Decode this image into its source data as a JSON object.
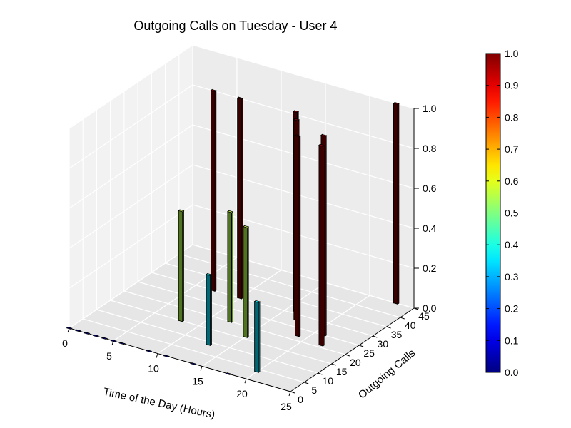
{
  "chart_data": {
    "type": "bar3d",
    "title": "Outgoing Calls on Tuesday - User 4",
    "xlabel": "Time of the Day (Hours)",
    "ylabel": "Outgoing Calls",
    "zlabel": "",
    "xlim": [
      0,
      25
    ],
    "ylim": [
      0,
      45
    ],
    "zlim": [
      0,
      1.0
    ],
    "xticks": [
      "0",
      "5",
      "10",
      "15",
      "20",
      "25"
    ],
    "yticks": [
      "0",
      "5",
      "10",
      "15",
      "20",
      "25",
      "30",
      "35",
      "40",
      "45"
    ],
    "zticks": [
      "0.0",
      "0.2",
      "0.4",
      "0.6",
      "0.8",
      "1.0"
    ],
    "colormap": "jet",
    "colorbar": {
      "min": 0.0,
      "max": 1.0,
      "ticks": [
        "0.0",
        "0.1",
        "0.2",
        "0.3",
        "0.4",
        "0.5",
        "0.6",
        "0.7",
        "0.8",
        "0.9",
        "1.0"
      ]
    },
    "bars": [
      {
        "hour": 0,
        "calls": 0,
        "value": 0.0
      },
      {
        "hour": 1,
        "calls": 0,
        "value": 0.0
      },
      {
        "hour": 2,
        "calls": 0,
        "value": 0.0
      },
      {
        "hour": 3,
        "calls": 0,
        "value": 0.0
      },
      {
        "hour": 4,
        "calls": 0,
        "value": 0.0
      },
      {
        "hour": 5,
        "calls": 0,
        "value": 0.0
      },
      {
        "hour": 6,
        "calls": 0,
        "value": 0.0
      },
      {
        "hour": 7,
        "calls": 30,
        "value": 1.0
      },
      {
        "hour": 8,
        "calls": 15,
        "value": 0.55
      },
      {
        "hour": 9,
        "calls": 0,
        "value": 0.0
      },
      {
        "hour": 10,
        "calls": 30,
        "value": 1.0
      },
      {
        "hour": 11,
        "calls": 0,
        "value": 0.0
      },
      {
        "hour": 12,
        "calls": 20,
        "value": 0.55
      },
      {
        "hour": 13,
        "calls": 9,
        "value": 0.35
      },
      {
        "hour": 14,
        "calls": 0,
        "value": 0.0
      },
      {
        "hour": 15,
        "calls": 16,
        "value": 0.55
      },
      {
        "hour": 16,
        "calls": 31,
        "value": 1.0
      },
      {
        "hour": 17,
        "calls": 28,
        "value": 1.0
      },
      {
        "hour": 18,
        "calls": 0,
        "value": 0.0
      },
      {
        "hour": 19,
        "calls": 22,
        "value": 1.0
      },
      {
        "hour": 20,
        "calls": 4,
        "value": 0.35
      },
      {
        "hour": 21,
        "calls": 25,
        "value": 1.0
      },
      {
        "hour": 22,
        "calls": 21,
        "value": 1.0
      },
      {
        "hour": 23,
        "calls": 45,
        "value": 1.0
      }
    ]
  }
}
